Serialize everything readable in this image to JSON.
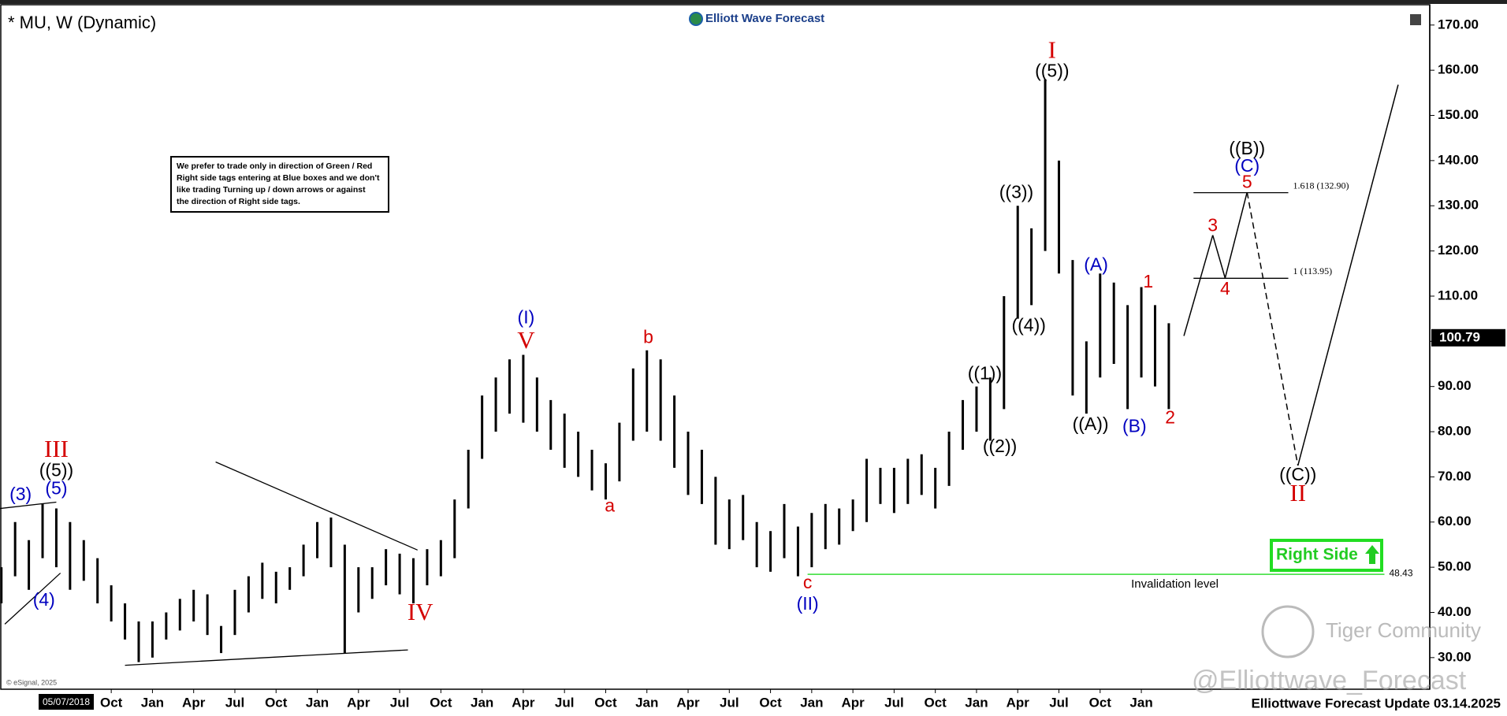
{
  "chart_data": {
    "type": "range-bar",
    "title": "* MU, W (Dynamic)",
    "logo": "Elliott Wave Forecast",
    "date_box": "05/07/2018",
    "source": "© eSignal, 2025",
    "footer": "Elliottwave Forecast Update 03.14.2025",
    "watermark": "@Elliottwave_Forecast",
    "community": "Tiger Community",
    "note": [
      "We prefer to trade only in direction of Green / Red",
      "Right side tags entering at Blue boxes and we don't",
      "like trading Turning up / down arrows or against",
      "the direction of Right side tags."
    ],
    "right_side": "Right Side",
    "color": "#000000",
    "x": [
      1,
      2,
      3,
      4,
      5,
      6,
      7,
      8,
      9,
      10,
      11,
      12,
      13,
      14,
      15,
      16,
      17,
      18,
      19,
      20,
      21,
      22,
      23,
      24,
      25,
      26,
      27,
      28,
      29,
      30,
      31,
      32,
      33,
      34,
      35,
      36,
      37,
      38,
      39,
      40,
      41,
      42,
      43,
      44,
      45,
      46,
      47,
      48,
      49,
      50,
      51,
      52,
      53,
      54,
      55,
      56,
      57,
      58,
      59,
      60,
      61,
      62,
      63,
      64,
      65,
      66,
      67,
      68,
      69,
      70,
      71,
      72,
      73,
      74,
      75,
      76,
      77,
      78,
      79,
      80,
      81,
      82,
      83,
      84,
      85,
      86
    ],
    "high": [
      50,
      60,
      56,
      64,
      63,
      60,
      56,
      52,
      46,
      42,
      38,
      38,
      40,
      43,
      45,
      44,
      37,
      45,
      48,
      51,
      49,
      50,
      55,
      60,
      61,
      55,
      50,
      50,
      54,
      53,
      52,
      54,
      56,
      65,
      76,
      88,
      92,
      96,
      97,
      92,
      87,
      84,
      80,
      76,
      73,
      82,
      94,
      98,
      96,
      88,
      80,
      76,
      70,
      65,
      66,
      60,
      58,
      64,
      59,
      62,
      64,
      63,
      65,
      74,
      72,
      72,
      74,
      75,
      72,
      80,
      87,
      90,
      92,
      110,
      130,
      125,
      158,
      140,
      118,
      100,
      115,
      113,
      108,
      112,
      108,
      104
    ],
    "low": [
      42,
      48,
      45,
      52,
      50,
      45,
      47,
      42,
      38,
      34,
      29,
      30,
      34,
      36,
      38,
      35,
      31,
      35,
      40,
      43,
      42,
      45,
      48,
      52,
      50,
      31,
      40,
      43,
      46,
      44,
      42,
      46,
      48,
      52,
      63,
      74,
      80,
      84,
      82,
      80,
      76,
      72,
      70,
      67,
      65,
      69,
      78,
      80,
      78,
      72,
      66,
      64,
      55,
      54,
      56,
      50,
      49,
      52,
      48,
      50,
      54,
      55,
      58,
      60,
      64,
      62,
      64,
      66,
      63,
      68,
      76,
      80,
      78,
      85,
      105,
      108,
      120,
      115,
      88,
      84,
      92,
      95,
      85,
      92,
      90,
      85
    ],
    "xlim": [
      0.9,
      105
    ],
    "xticks": [
      {
        "value": 9,
        "label": "Oct"
      },
      {
        "value": 12,
        "label": "Jan"
      },
      {
        "value": 15,
        "label": "Apr"
      },
      {
        "value": 18,
        "label": "Jul"
      },
      {
        "value": 21,
        "label": "Oct"
      },
      {
        "value": 24,
        "label": "Jan"
      },
      {
        "value": 27,
        "label": "Apr"
      },
      {
        "value": 30,
        "label": "Jul"
      },
      {
        "value": 33,
        "label": "Oct"
      },
      {
        "value": 36,
        "label": "Jan"
      },
      {
        "value": 39,
        "label": "Apr"
      },
      {
        "value": 42,
        "label": "Jul"
      },
      {
        "value": 45,
        "label": "Oct"
      },
      {
        "value": 48,
        "label": "Jan"
      },
      {
        "value": 51,
        "label": "Apr"
      },
      {
        "value": 54,
        "label": "Jul"
      },
      {
        "value": 57,
        "label": "Oct"
      },
      {
        "value": 60,
        "label": "Jan"
      },
      {
        "value": 63,
        "label": "Apr"
      },
      {
        "value": 66,
        "label": "Jul"
      },
      {
        "value": 69,
        "label": "Oct"
      },
      {
        "value": 72,
        "label": "Jan"
      },
      {
        "value": 75,
        "label": "Apr"
      },
      {
        "value": 78,
        "label": "Jul"
      },
      {
        "value": 81,
        "label": "Oct"
      },
      {
        "value": 84,
        "label": "Jan"
      }
    ],
    "ylim": [
      23,
      173.8
    ],
    "yticks": [
      {
        "value": 30,
        "label": "30.00"
      },
      {
        "value": 40,
        "label": "40.00"
      },
      {
        "value": 50,
        "label": "50.00"
      },
      {
        "value": 60,
        "label": "60.00"
      },
      {
        "value": 70,
        "label": "70.00"
      },
      {
        "value": 80,
        "label": "80.00"
      },
      {
        "value": 90,
        "label": "90.00"
      },
      {
        "value": 100,
        "label": "100.00"
      },
      {
        "value": 110,
        "label": "110.00"
      },
      {
        "value": 120,
        "label": "120.00"
      },
      {
        "value": 130,
        "label": "130.00"
      },
      {
        "value": 140,
        "label": "140.00"
      },
      {
        "value": 150,
        "label": "150.00"
      },
      {
        "value": 160,
        "label": "160.00"
      },
      {
        "value": 170,
        "label": "170.00"
      }
    ],
    "last_price": {
      "value": 100.79,
      "label": "100.79"
    },
    "trendlines": [
      {
        "x": [
          16.6,
          31.3
        ],
        "y": [
          73.3,
          53.8
        ]
      },
      {
        "x": [
          10,
          30.6
        ],
        "y": [
          28.3,
          31.7
        ]
      },
      {
        "x": [
          0.9,
          5.0
        ],
        "y": [
          63,
          64.4
        ]
      },
      {
        "x": [
          1.25,
          5.3
        ],
        "y": [
          37.4,
          48.7
        ]
      }
    ],
    "projection": {
      "x": [
        87.1,
        89.2,
        90.1,
        91.7,
        95.4,
        102.7
      ],
      "y": [
        101.2,
        123.5,
        114,
        133,
        72.5,
        156.8
      ],
      "styles": [
        "solid",
        "solid",
        "solid",
        "dashed",
        "solid"
      ]
    },
    "fib_levels": [
      {
        "value": 132.9,
        "label": "1.618 (132.90)",
        "x": [
          87.8,
          94.7
        ]
      },
      {
        "value": 113.95,
        "label": "1 (113.95)",
        "x": [
          87.8,
          94.7
        ]
      }
    ],
    "invalidation": {
      "value": 48.43,
      "label": "48.43",
      "text": "Invalidation level",
      "x": [
        59.7,
        101.7
      ],
      "color": "#33dd33"
    },
    "wave_labels": [
      {
        "text": "III",
        "x": 5.0,
        "y": 75.7,
        "color": "#d40000"
      },
      {
        "text": "((5))",
        "x": 5.0,
        "y": 71.2,
        "color": "#000000"
      },
      {
        "text": "(5)",
        "x": 5.0,
        "y": 67.2,
        "color": "#0000c0"
      },
      {
        "text": "(3)",
        "x": 2.4,
        "y": 65.9,
        "color": "#0000c0"
      },
      {
        "text": "(4)",
        "x": 4.1,
        "y": 42.5,
        "color": "#0000c0"
      },
      {
        "text": "IV",
        "x": 31.5,
        "y": 39.6,
        "color": "#d40000"
      },
      {
        "text": "(I)",
        "x": 39.2,
        "y": 105,
        "color": "#0000c0"
      },
      {
        "text": "V",
        "x": 39.2,
        "y": 99.7,
        "color": "#d40000"
      },
      {
        "text": "a",
        "x": 45.3,
        "y": 63.4,
        "color": "#d40000"
      },
      {
        "text": "b",
        "x": 48.1,
        "y": 100.7,
        "color": "#d40000"
      },
      {
        "text": "c",
        "x": 59.7,
        "y": 46.4,
        "color": "#d40000"
      },
      {
        "text": "(II)",
        "x": 59.7,
        "y": 41.7,
        "color": "#0000c0"
      },
      {
        "text": "((1))",
        "x": 72.6,
        "y": 92.7,
        "color": "#000000"
      },
      {
        "text": "((2))",
        "x": 73.7,
        "y": 76.5,
        "color": "#000000"
      },
      {
        "text": "((3))",
        "x": 74.9,
        "y": 132.8,
        "color": "#000000"
      },
      {
        "text": "((4))",
        "x": 75.8,
        "y": 103.3,
        "color": "#000000"
      },
      {
        "text": "((5))",
        "x": 77.5,
        "y": 159.6,
        "color": "#000000"
      },
      {
        "text": "I",
        "x": 77.5,
        "y": 164,
        "color": "#d40000"
      },
      {
        "text": "((A))",
        "x": 80.3,
        "y": 81.4,
        "color": "#000000"
      },
      {
        "text": "(A)",
        "x": 80.7,
        "y": 116.7,
        "color": "#0000c0"
      },
      {
        "text": "(B)",
        "x": 83.5,
        "y": 81,
        "color": "#0000c0"
      },
      {
        "text": "1",
        "x": 84.5,
        "y": 113,
        "color": "#d40000"
      },
      {
        "text": "2",
        "x": 86.1,
        "y": 82.9,
        "color": "#d40000"
      },
      {
        "text": "3",
        "x": 89.2,
        "y": 125.4,
        "color": "#d40000"
      },
      {
        "text": "4",
        "x": 90.1,
        "y": 111.4,
        "color": "#d40000"
      },
      {
        "text": "5",
        "x": 91.7,
        "y": 135,
        "color": "#d40000"
      },
      {
        "text": "(C)",
        "x": 91.7,
        "y": 138.6,
        "color": "#0000c0"
      },
      {
        "text": "((B))",
        "x": 91.7,
        "y": 142.4,
        "color": "#000000"
      },
      {
        "text": "((C))",
        "x": 95.4,
        "y": 70.3,
        "color": "#000000"
      },
      {
        "text": "II",
        "x": 95.4,
        "y": 65.9,
        "color": "#d40000"
      }
    ]
  }
}
